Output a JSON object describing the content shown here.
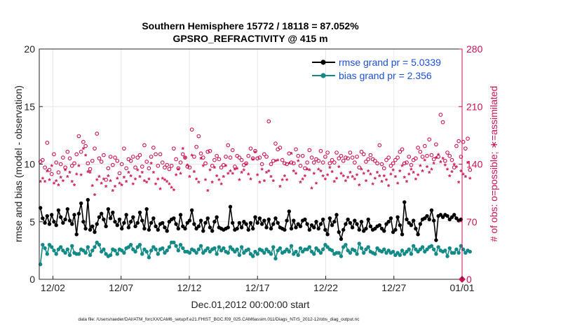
{
  "title_line1": "Southern Hemisphere 15772 / 18118 = 87.052%",
  "title_line2": "GPSRO_REFRACTIVITY @ 415 m",
  "footer": "data file: /Users/raeder/DAI/ATM_forcXX/CAM6_setup/f.e21.FHIST_BGC.f09_025.CAM6assim.011/Diags_NTrS_2012-12/obs_diag_output.nc",
  "colors": {
    "rmse": "#000000",
    "bias": "#138a86",
    "obs": "#cc1155",
    "legend_text": "#1a4fd6"
  },
  "chart_data": {
    "type": "line",
    "xlabel": "Dec.01,2012 00:00:00 start",
    "ylabel": "rmse and bias (model - observation)",
    "ylabel_right": "# of obs: o=possible; ∗=assimilated",
    "x_start": "2012-12-01",
    "x_end": "2013-01-01",
    "xticks": [
      "12/02",
      "12/07",
      "12/12",
      "12/17",
      "12/22",
      "12/27",
      "01/01"
    ],
    "ylim": [
      0,
      20
    ],
    "yticks": [
      0,
      5,
      10,
      15,
      20
    ],
    "ylim_right": [
      0,
      280
    ],
    "yticks_right": [
      0,
      70,
      140,
      210,
      280
    ],
    "legend": [
      {
        "label": "rmse grand pr = 5.0339",
        "series": "rmse"
      },
      {
        "label": "bias grand pr = 2.356",
        "series": "bias"
      }
    ],
    "series": [
      {
        "name": "rmse grand pr = 5.0339",
        "values": [
          6.2,
          5.3,
          4.9,
          5.5,
          4.8,
          5.6,
          5.0,
          4.7,
          6.0,
          5.4,
          4.9,
          5.2,
          6.1,
          5.1,
          4.8,
          5.6,
          3.9,
          5.7,
          6.6,
          5.0,
          4.4,
          6.9,
          4.3,
          4.6,
          4.1,
          4.8,
          5.4,
          5.7,
          5.2,
          4.6,
          6.1,
          5.3,
          5.8,
          5.0,
          4.7,
          5.2,
          4.4,
          4.9,
          5.6,
          4.5,
          5.0,
          5.4,
          4.6,
          4.9,
          5.8,
          5.1,
          4.4,
          6.1,
          4.3,
          4.9,
          5.3,
          4.6,
          4.3,
          4.8,
          4.9,
          4.5,
          4.2,
          5.0,
          5.2,
          5.3,
          4.8,
          4.4,
          5.6,
          4.6,
          4.4,
          4.9,
          5.1,
          6.0,
          4.8,
          4.4,
          4.6,
          5.1,
          4.2,
          4.9,
          5.3,
          4.5,
          4.2,
          5.0,
          5.4,
          4.5,
          4.4,
          4.3,
          4.4,
          4.5,
          6.3,
          4.9,
          4.3,
          4.4,
          4.9,
          4.5,
          5.0,
          4.8,
          4.3,
          4.9,
          4.4,
          5.4,
          4.9,
          5.3,
          4.8,
          5.1,
          4.5,
          5.2,
          4.4,
          4.8,
          5.3,
          4.9,
          4.5,
          4.4,
          4.3,
          5.1,
          5.9,
          4.4,
          5.1,
          4.5,
          4.8,
          4.6,
          5.1,
          5.2,
          4.8,
          4.3,
          4.7,
          4.5,
          5.0,
          4.4,
          4.8,
          5.2,
          4.3,
          3.9,
          5.3,
          4.7,
          5.0,
          5.6,
          4.1,
          3.5,
          4.3,
          4.8,
          5.2,
          4.9,
          4.5,
          5.1,
          4.8,
          4.3,
          5.0,
          4.2,
          4.4,
          5.2,
          4.6,
          4.3,
          4.4,
          4.6,
          4.7,
          4.4,
          4.2,
          4.8,
          5.0,
          5.3,
          4.1,
          4.3,
          5.4,
          4.7,
          3.9,
          6.7,
          5.2,
          4.9,
          4.7,
          5.1,
          4.4,
          3.9,
          4.8,
          5.2,
          5.3,
          5.5,
          5.2,
          6.0,
          5.1,
          3.4,
          5.5,
          5.6,
          5.4,
          5.6,
          5.5,
          5.2,
          5.4,
          5.6,
          5.3,
          5.1,
          5.2
        ]
      },
      {
        "name": "bias grand pr = 2.356",
        "values": [
          1.3,
          3.0,
          2.7,
          2.2,
          3.0,
          2.8,
          2.5,
          2.2,
          2.6,
          2.8,
          2.5,
          2.3,
          2.6,
          2.1,
          2.9,
          2.3,
          2.2,
          2.2,
          2.6,
          2.5,
          2.3,
          2.8,
          2.1,
          2.5,
          2.8,
          3.2,
          3.0,
          2.4,
          2.6,
          2.2,
          2.0,
          2.1,
          2.6,
          2.5,
          2.2,
          2.6,
          2.5,
          2.3,
          2.7,
          2.8,
          3.0,
          2.6,
          2.4,
          2.8,
          3.0,
          2.2,
          2.6,
          2.4,
          1.9,
          2.5,
          2.8,
          2.6,
          2.2,
          2.6,
          2.7,
          2.3,
          2.5,
          2.8,
          3.2,
          3.2,
          2.9,
          2.5,
          3.0,
          2.7,
          2.4,
          2.4,
          2.3,
          2.6,
          2.5,
          2.3,
          2.6,
          2.9,
          2.3,
          2.5,
          2.7,
          2.4,
          2.6,
          2.7,
          2.2,
          2.8,
          2.5,
          2.7,
          2.4,
          2.3,
          2.8,
          2.6,
          2.4,
          2.6,
          2.1,
          2.8,
          2.3,
          2.5,
          2.6,
          2.2,
          2.0,
          2.4,
          2.2,
          2.6,
          2.5,
          2.3,
          2.6,
          2.4,
          2.2,
          2.8,
          1.8,
          2.5,
          2.7,
          2.3,
          2.4,
          2.6,
          2.4,
          2.9,
          2.2,
          2.4,
          2.1,
          2.7,
          2.4,
          2.6,
          2.6,
          2.8,
          2.4,
          2.2,
          2.7,
          2.5,
          2.3,
          2.6,
          3.0,
          2.8,
          2.6,
          2.5,
          2.2,
          2.3,
          2.3,
          2.0,
          2.8,
          3.0,
          2.5,
          2.3,
          2.6,
          2.5,
          2.2,
          3.1,
          2.7,
          2.3,
          2.6,
          2.8,
          2.4,
          2.3,
          2.2,
          2.7,
          2.5,
          2.4,
          2.6,
          2.3,
          2.5,
          2.3,
          2.4,
          2.1,
          2.3,
          2.1,
          2.5,
          2.2,
          2.4,
          2.6,
          2.2,
          2.9,
          2.6,
          2.4,
          2.6,
          2.8,
          2.4,
          2.6,
          2.8,
          2.9,
          2.6,
          2.2,
          2.8,
          2.5,
          2.4,
          2.5,
          2.0,
          2.7,
          2.3,
          2.3,
          2.6,
          2.3,
          2.9,
          2.6,
          2.3,
          2.5,
          2.4
        ]
      },
      {
        "name": "possible",
        "axis": "right",
        "marker": "o",
        "values": [
          143,
          145,
          136,
          166,
          133,
          128,
          152,
          142,
          130,
          140,
          148,
          136,
          155,
          147,
          138,
          141,
          152,
          174,
          155,
          167,
          162,
          141,
          134,
          144,
          159,
          177,
          147,
          143,
          151,
          121,
          135,
          149,
          139,
          148,
          144,
          129,
          140,
          159,
          135,
          146,
          144,
          149,
          136,
          148,
          151,
          137,
          163,
          143,
          135,
          149,
          160,
          152,
          138,
          152,
          142,
          136,
          139,
          134,
          138,
          159,
          146,
          135,
          142,
          152,
          148,
          137,
          136,
          182,
          149,
          161,
          174,
          153,
          148,
          141,
          155,
          156,
          138,
          145,
          150,
          146,
          136,
          139,
          149,
          163,
          148,
          157,
          137,
          150,
          148,
          145,
          139,
          141,
          150,
          159,
          147,
          156,
          147,
          148,
          140,
          152,
          149,
          192,
          140,
          144,
          165,
          158,
          160,
          145,
          141,
          140,
          153,
          142,
          141,
          158,
          150,
          138,
          150,
          135,
          142,
          157,
          148,
          142,
          146,
          144,
          156,
          142,
          149,
          154,
          141,
          145,
          142,
          154,
          147,
          150,
          144,
          148,
          147,
          154,
          148,
          142,
          149,
          136,
          155,
          152,
          143,
          146,
          151,
          146,
          144,
          141,
          163,
          140,
          135,
          145,
          148,
          138,
          141,
          145,
          148,
          155,
          158,
          141,
          142,
          149,
          139,
          145,
          147,
          160,
          155,
          149,
          162,
          150,
          170,
          151,
          146,
          164,
          149,
          200,
          191,
          144,
          154,
          150,
          145,
          136,
          162,
          168,
          149,
          167,
          159,
          171,
          133
        ]
      },
      {
        "name": "assimilated",
        "axis": "right",
        "marker": "*",
        "values": [
          118,
          122,
          118,
          131,
          120,
          137,
          116,
          119,
          114,
          123,
          119,
          132,
          124,
          129,
          118,
          114,
          127,
          137,
          126,
          158,
          150,
          130,
          129,
          113,
          102,
          120,
          124,
          116,
          121,
          112,
          125,
          119,
          107,
          112,
          122,
          116,
          114,
          123,
          118,
          129,
          125,
          115,
          121,
          132,
          124,
          129,
          119,
          117,
          121,
          140,
          129,
          115,
          121,
          109,
          122,
          120,
          118,
          115,
          111,
          108,
          126,
          133,
          128,
          158,
          147,
          138,
          124,
          150,
          130,
          121,
          117,
          146,
          137,
          120,
          107,
          132,
          117,
          135,
          125,
          120,
          115,
          124,
          137,
          128,
          131,
          128,
          133,
          134,
          120,
          129,
          132,
          139,
          127,
          121,
          145,
          154,
          126,
          117,
          133,
          119,
          129,
          131,
          124,
          119,
          143,
          144,
          112,
          120,
          125,
          120,
          140,
          152,
          131,
          128,
          143,
          117,
          121,
          125,
          133,
          132,
          110,
          128,
          116,
          133,
          131,
          125,
          121,
          126,
          135,
          130,
          118,
          122,
          136,
          128,
          125,
          119,
          123,
          129,
          124,
          121,
          126,
          114,
          133,
          128,
          119,
          131,
          127,
          115,
          122,
          129,
          125,
          118,
          125,
          120,
          113,
          127,
          132,
          124,
          116,
          131,
          137,
          123,
          118,
          127,
          133,
          129,
          121,
          126,
          137,
          131,
          144,
          136,
          129,
          133,
          140,
          147,
          151,
          142,
          146,
          138,
          133,
          125,
          130,
          139,
          136,
          117,
          131,
          127,
          124,
          141,
          122
        ]
      }
    ]
  }
}
